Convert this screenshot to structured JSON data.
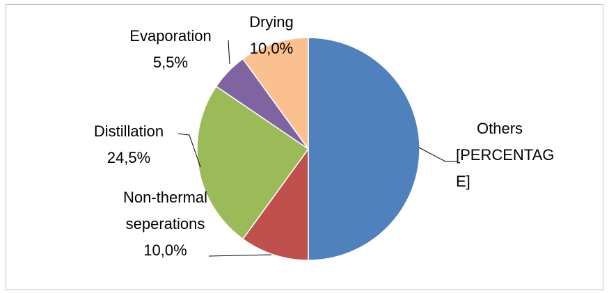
{
  "chart_data": {
    "type": "pie",
    "categories": [
      "Others",
      "Non-thermal seperations",
      "Distillation",
      "Evaporation",
      "Drying"
    ],
    "values": [
      50,
      10,
      24.5,
      5.5,
      10
    ],
    "value_labels": [
      "[PERCENTAGE]",
      "10,0%",
      "24,5%",
      "5,5%",
      "10,0%"
    ],
    "colors": [
      "#4f81bd",
      "#c0504d",
      "#9bbb59",
      "#8064a2",
      "#fac090"
    ]
  }
}
